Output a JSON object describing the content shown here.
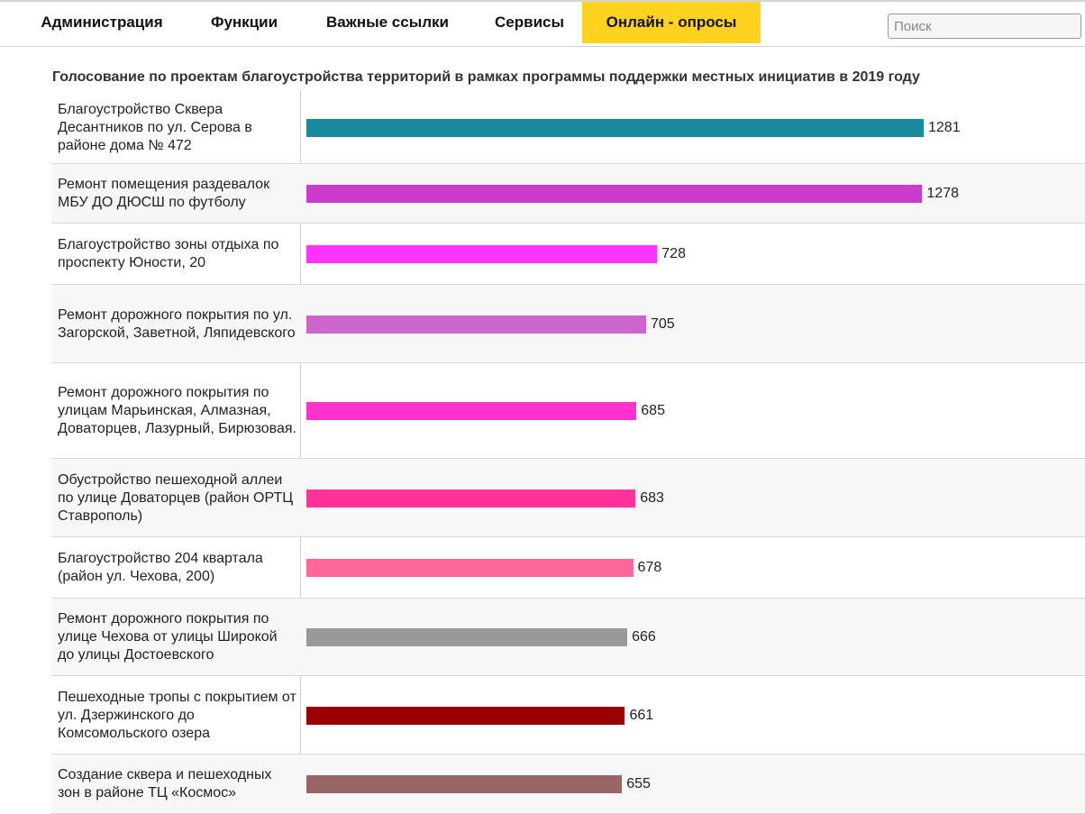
{
  "nav": {
    "items": [
      {
        "label": "Администрация",
        "name": "nav-item-administration",
        "active": false
      },
      {
        "label": "Функции",
        "name": "nav-item-functions",
        "active": false
      },
      {
        "label": "Важные ссылки",
        "name": "nav-item-important-links",
        "active": false
      },
      {
        "label": "Сервисы",
        "name": "nav-item-services",
        "active": false
      },
      {
        "label": "Онлайн - опросы",
        "name": "nav-item-online-polls",
        "active": true
      }
    ],
    "active_color": "#ffd21f"
  },
  "search": {
    "placeholder": "Поиск",
    "value": ""
  },
  "chart_data": {
    "type": "bar",
    "orientation": "horizontal",
    "title": "Голосование по проектам благоустройства территорий в рамках программы поддержки местных инициатив в 2019 году",
    "categories": [
      "Благоустройство Сквера Десантников по ул. Серова в районе дома № 472",
      "Ремонт помещения раздевалок МБУ ДО ДЮСШ по футболу",
      "Благоустройство зоны отдыха по проспекту Юности, 20",
      "Ремонт дорожного покрытия по ул. Загорской, Заветной, Ляпидевского",
      "Ремонт дорожного покрытия по улицам Марьинская, Алмазная, Доваторцев, Лазурный, Бирюзовая.",
      "Обустройство пешеходной аллеи по улице Доваторцев (район ОРТЦ Ставрополь)",
      "Благоустройство 204 квартала (район ул. Чехова, 200)",
      "Ремонт дорожного покрытия по улице Чехова от улицы Широкой до улицы Достоевского",
      "Пешеходные тропы с покрытием от ул. Дзержинского до Комсомольского озера",
      "Создание сквера и пешеходных зон в районе ТЦ «Космос»"
    ],
    "values": [
      1281,
      1278,
      728,
      705,
      685,
      683,
      678,
      666,
      661,
      655
    ],
    "colors": [
      "#1a8aa0",
      "#cc3ccc",
      "#ff33ff",
      "#cc66cc",
      "#ff33cc",
      "#ff3399",
      "#ff6699",
      "#999999",
      "#990000",
      "#996666"
    ],
    "grid": false,
    "data_labels": true
  }
}
